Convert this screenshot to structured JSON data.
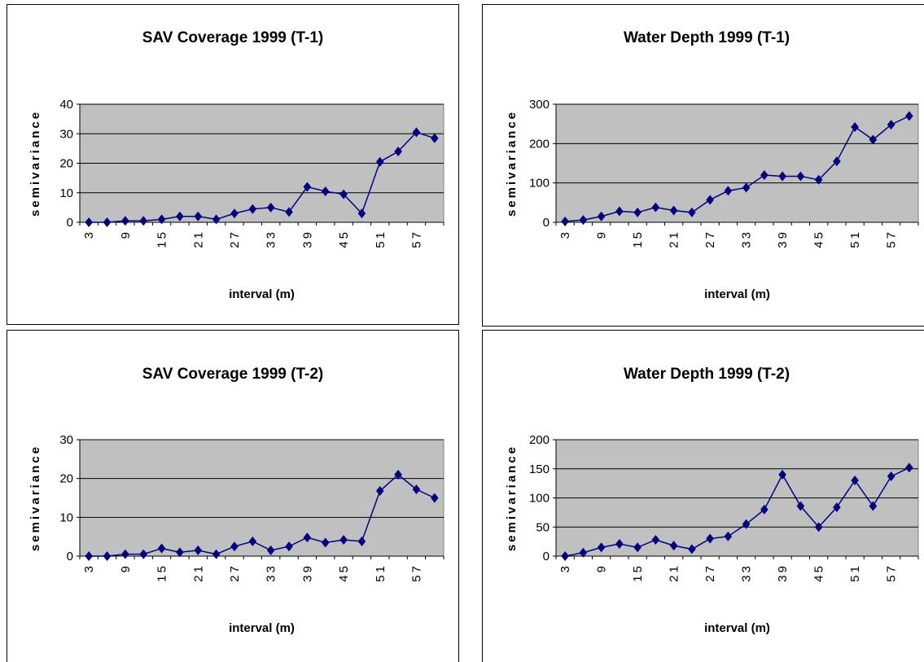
{
  "chart_data": [
    {
      "type": "line",
      "title": "SAV Coverage 1999 (T-1)",
      "x_label": "interval (m)",
      "y_label": "semivariance",
      "categories": [
        "3",
        null,
        "9",
        null,
        "15",
        null,
        "21",
        null,
        "27",
        null,
        "33",
        null,
        "39",
        null,
        "45",
        null,
        "51",
        null,
        "57",
        null
      ],
      "values": [
        0,
        0,
        0.5,
        0.5,
        1,
        2,
        2,
        1,
        3,
        4.5,
        5,
        3.5,
        12,
        10.5,
        9.5,
        3,
        20.5,
        24,
        30.5,
        28.5
      ],
      "color": "#000080",
      "marker": "diamond",
      "plot_background": "#c0c0c0",
      "grid": true,
      "ylim": [
        0,
        40
      ],
      "yticks": [
        0,
        10,
        20,
        30,
        40
      ]
    },
    {
      "type": "line",
      "title": "Water Depth 1999 (T-1)",
      "x_label": "interval (m)",
      "y_label": "semivariance",
      "categories": [
        "3",
        null,
        "9",
        null,
        "15",
        null,
        "21",
        null,
        "27",
        null,
        "33",
        null,
        "39",
        null,
        "45",
        null,
        "51",
        null,
        "57",
        null
      ],
      "values": [
        2,
        6,
        15,
        28,
        25,
        38,
        30,
        25,
        57,
        80,
        88,
        120,
        117,
        117,
        108,
        155,
        242,
        210,
        248,
        270
      ],
      "color": "#000080",
      "marker": "diamond",
      "plot_background": "#c0c0c0",
      "grid": true,
      "ylim": [
        0,
        300
      ],
      "yticks": [
        0,
        100,
        200,
        300
      ]
    },
    {
      "type": "line",
      "title": "SAV Coverage 1999 (T-2)",
      "x_label": "interval (m)",
      "y_label": "semivariance",
      "categories": [
        "3",
        null,
        "9",
        null,
        "15",
        null,
        "21",
        null,
        "27",
        null,
        "33",
        null,
        "39",
        null,
        "45",
        null,
        "51",
        null,
        "57",
        null
      ],
      "values": [
        0,
        0,
        0.5,
        0.5,
        2,
        1,
        1.5,
        0.5,
        2.5,
        3.8,
        1.5,
        2.5,
        4.8,
        3.5,
        4.2,
        3.8,
        16.8,
        21,
        17.2,
        15
      ],
      "color": "#000080",
      "marker": "diamond",
      "plot_background": "#c0c0c0",
      "grid": true,
      "ylim": [
        0,
        30
      ],
      "yticks": [
        0,
        10,
        20,
        30
      ]
    },
    {
      "type": "line",
      "title": "Water Depth 1999 (T-2)",
      "x_label": "interval (m)",
      "y_label": "semivariance",
      "categories": [
        "3",
        null,
        "9",
        null,
        "15",
        null,
        "21",
        null,
        "27",
        null,
        "33",
        null,
        "39",
        null,
        "45",
        null,
        "51",
        null,
        "57",
        null
      ],
      "values": [
        0,
        6,
        15,
        21,
        15,
        28,
        18,
        12,
        30,
        34,
        55,
        80,
        140,
        86,
        50,
        84,
        130,
        86,
        137,
        152
      ],
      "color": "#000080",
      "marker": "diamond",
      "plot_background": "#c0c0c0",
      "grid": true,
      "ylim": [
        0,
        200
      ],
      "yticks": [
        0,
        50,
        100,
        150,
        200
      ]
    }
  ]
}
